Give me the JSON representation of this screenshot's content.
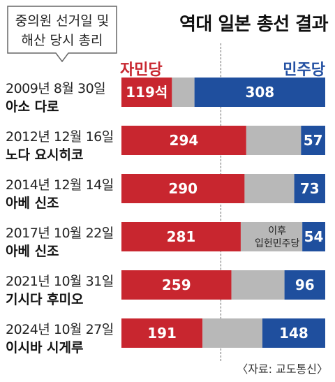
{
  "callout": {
    "line1": "중의원 선거일 및",
    "line2": "해산 당시 총리"
  },
  "title": "역대 일본 총선 결과",
  "chart_data": {
    "type": "bar",
    "stacked": true,
    "legend": {
      "left": "자민당",
      "right": "민주당"
    },
    "colors": {
      "ldp": "#c8262f",
      "other": "#b8b8b8",
      "dpj": "#1f4f9e"
    },
    "total": 480,
    "rows": [
      {
        "date": "2009년 8월 30일",
        "pm": "아소 다로",
        "ldp": 119,
        "ldp_label": "119석",
        "dpj": 308,
        "dpj_label": "308",
        "note": ""
      },
      {
        "date": "2012년 12월 16일",
        "pm": "노다 요시히코",
        "ldp": 294,
        "ldp_label": "294",
        "dpj": 57,
        "dpj_label": "57",
        "note": ""
      },
      {
        "date": "2014년 12월 14일",
        "pm": "아베 신조",
        "ldp": 290,
        "ldp_label": "290",
        "dpj": 73,
        "dpj_label": "73",
        "note": ""
      },
      {
        "date": "2017년 10월 22일",
        "pm": "아베 신조",
        "ldp": 281,
        "ldp_label": "281",
        "dpj": 54,
        "dpj_label": "54",
        "note": "이후|입헌민주당"
      },
      {
        "date": "2021년 10월 31일",
        "pm": "기시다 후미오",
        "ldp": 259,
        "ldp_label": "259",
        "dpj": 96,
        "dpj_label": "96",
        "note": ""
      },
      {
        "date": "2024년 10월 27일",
        "pm": "이시바 시게루",
        "ldp": 191,
        "ldp_label": "191",
        "dpj": 148,
        "dpj_label": "148",
        "note": ""
      }
    ]
  },
  "source": "〈자료: 교도통신〉"
}
